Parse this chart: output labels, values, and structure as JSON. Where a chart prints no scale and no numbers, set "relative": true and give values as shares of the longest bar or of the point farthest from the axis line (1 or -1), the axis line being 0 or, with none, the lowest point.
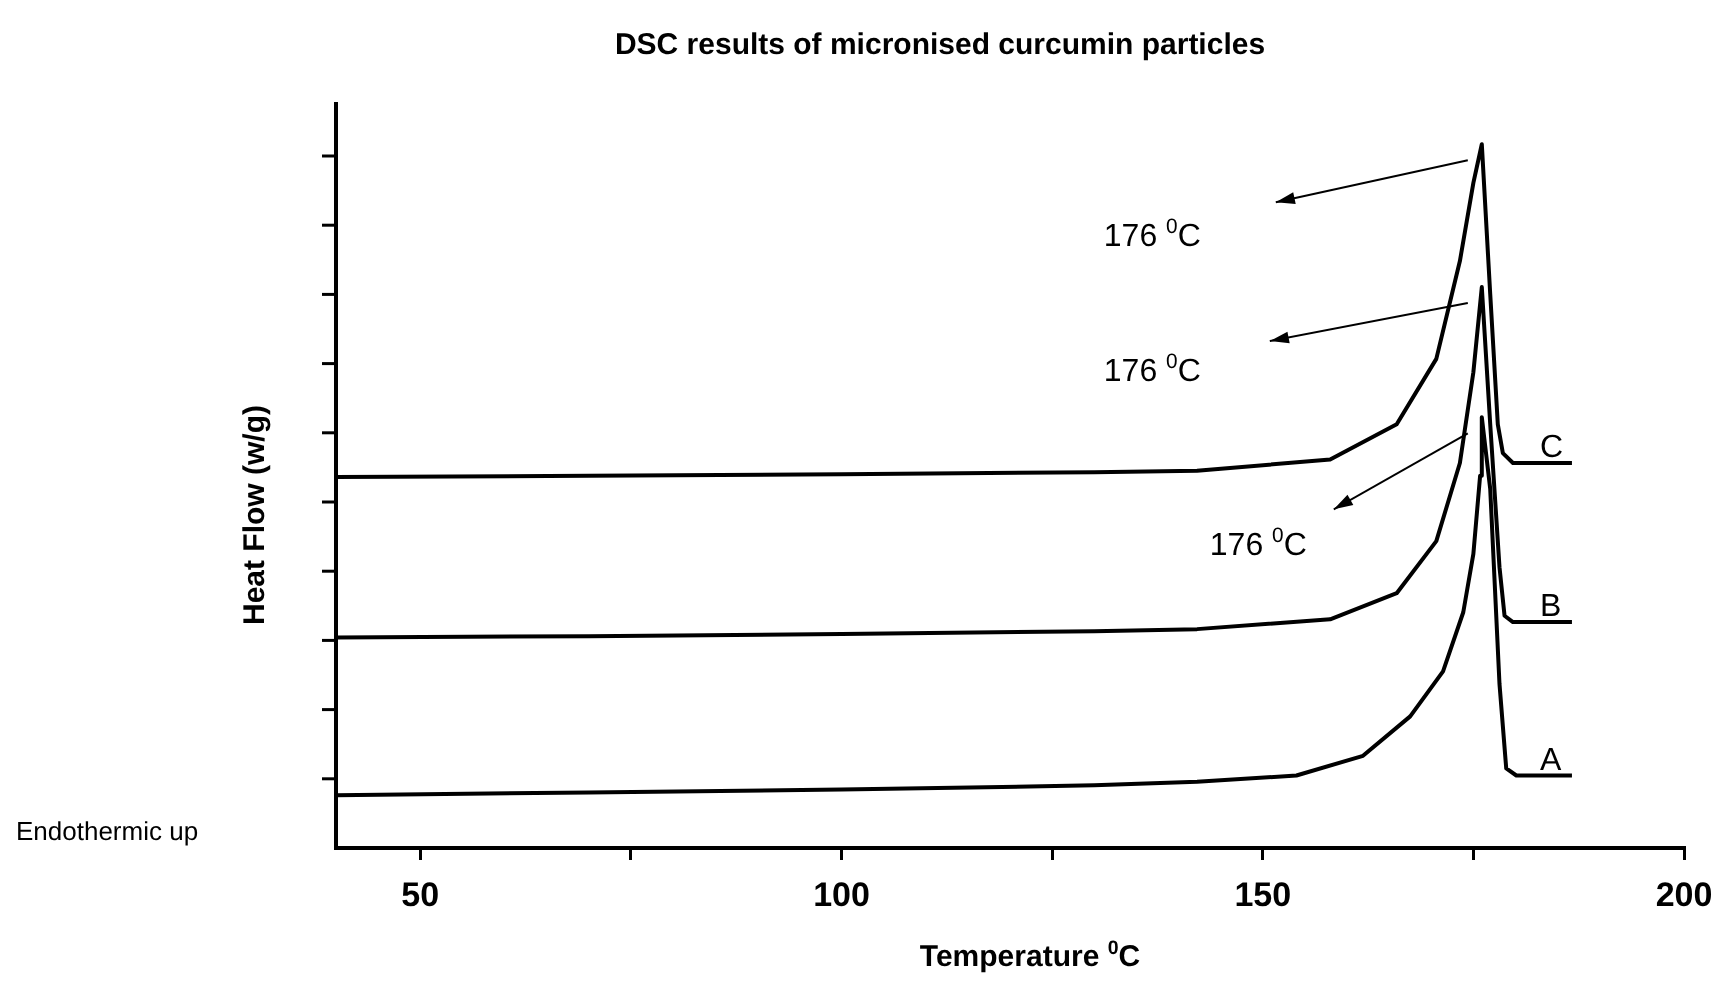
{
  "chart_data": {
    "type": "line",
    "title": "DSC results of micronised curcumin particles",
    "xlabel": "Temperature $^{0}$C",
    "ylabel": "Heat Flow (w/g)",
    "relative": true,
    "xlim": [
      40,
      200
    ],
    "xticks": [
      50,
      {
        "value": 75,
        "label": null
      },
      100,
      {
        "value": 125,
        "label": null
      },
      150,
      {
        "value": 175,
        "label": null
      },
      200
    ],
    "grid": false,
    "legend": false,
    "marker": "none",
    "line_style": "solid",
    "series": [
      {
        "name": "A",
        "color": "#000000",
        "x": [
          40,
          70,
          100,
          130,
          142.2,
          154,
          161.9,
          167.5,
          171.4,
          173.8,
          175,
          175.8,
          176,
          177,
          178.1,
          178.9,
          180.1,
          186.7
        ],
        "values": [
          0.075,
          0.079,
          0.083,
          0.089,
          0.094,
          0.103,
          0.131,
          0.187,
          0.251,
          0.335,
          0.418,
          0.529,
          0.612,
          0.51,
          0.233,
          0.113,
          0.103,
          0.103
        ]
      },
      {
        "name": "B",
        "color": "#000000",
        "x": [
          40,
          70,
          100,
          130,
          142.2,
          158,
          165.9,
          170.6,
          173.4,
          175,
          176,
          177,
          178.1,
          178.7,
          179.7,
          186.7
        ],
        "values": [
          0.299,
          0.301,
          0.304,
          0.308,
          0.311,
          0.325,
          0.362,
          0.436,
          0.547,
          0.676,
          0.797,
          0.602,
          0.399,
          0.33,
          0.321,
          0.321
        ]
      },
      {
        "name": "C",
        "color": "#000000",
        "x": [
          40,
          70,
          100,
          130,
          142.2,
          158,
          165.9,
          170.6,
          173.4,
          175,
          176,
          177,
          177.9,
          178.5,
          179.7,
          186.7
        ],
        "values": [
          0.527,
          0.529,
          0.531,
          0.534,
          0.536,
          0.552,
          0.602,
          0.695,
          0.834,
          0.945,
          1,
          0.787,
          0.602,
          0.561,
          0.547,
          0.547
        ]
      }
    ],
    "annotations": [
      "176 $^{0}$C",
      "176 $^{0}$C",
      "176 $^{0}$C",
      "Endothermic up"
    ]
  }
}
